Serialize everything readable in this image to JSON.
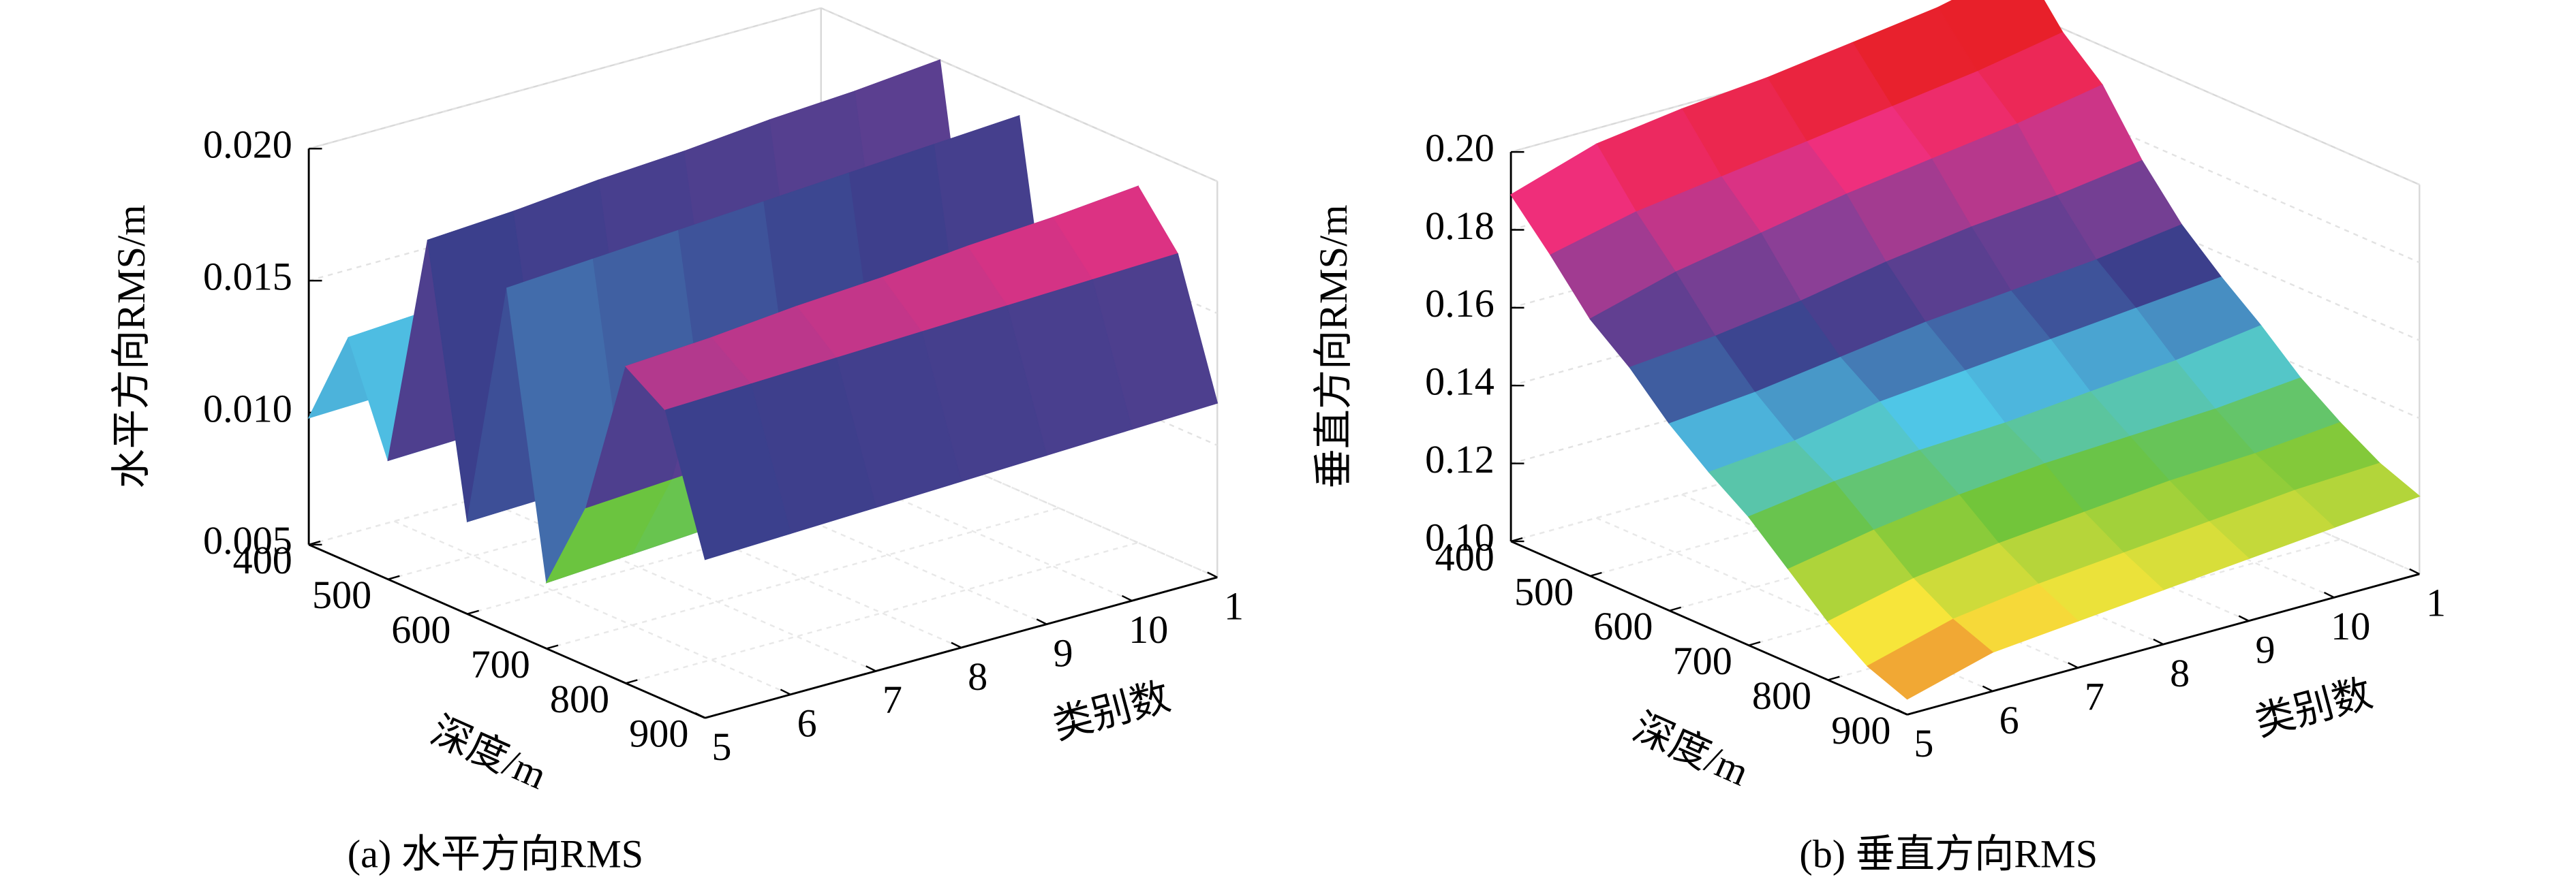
{
  "chart_data": [
    {
      "type": "surface",
      "caption": "(a) 水平方向RMS",
      "zlabel": "水平方向RMS/m",
      "ylabel": "深度/m",
      "xlabel": "类别数",
      "categories": [
        "5",
        "6",
        "7",
        "8",
        "9",
        "10",
        "1"
      ],
      "y": [
        400,
        450,
        500,
        550,
        600,
        650,
        700,
        750,
        800,
        850,
        900
      ],
      "values": [
        [
          0.0098,
          0.0099,
          0.01,
          0.0101,
          0.0102,
          0.0103,
          0.0104
        ],
        [
          0.0135,
          0.0137,
          0.014,
          0.0142,
          0.0145,
          0.0147,
          0.015
        ],
        [
          0.0095,
          0.0096,
          0.0097,
          0.0098,
          0.0099,
          0.01,
          0.0101
        ],
        [
          0.0185,
          0.0187,
          0.019,
          0.0192,
          0.0195,
          0.0197,
          0.02
        ],
        [
          0.0085,
          0.0086,
          0.0087,
          0.0088,
          0.0089,
          0.009,
          0.0091
        ],
        [
          0.018,
          0.0182,
          0.0184,
          0.0186,
          0.0188,
          0.019,
          0.0192
        ],
        [
          0.0075,
          0.0077,
          0.0079,
          0.0081,
          0.0083,
          0.0085,
          0.0087
        ],
        [
          0.011,
          0.0112,
          0.0114,
          0.0116,
          0.0118,
          0.012,
          0.0122
        ],
        [
          0.017,
          0.0172,
          0.0175,
          0.0177,
          0.018,
          0.0182,
          0.0185
        ],
        [
          0.016,
          0.0161,
          0.0162,
          0.0163,
          0.0164,
          0.0165,
          0.0166
        ],
        [
          0.011,
          0.0111,
          0.0112,
          0.0113,
          0.0114,
          0.0115,
          0.0116
        ]
      ],
      "zlim": [
        0.005,
        0.02
      ],
      "zticks": [
        0.005,
        {
          "value": 0.01,
          "label": "0.010"
        },
        0.015,
        {
          "value": 0.02,
          "label": "0.020"
        }
      ],
      "ylim": [
        400,
        900
      ],
      "yticks": [
        400,
        500,
        600,
        700,
        800,
        900
      ],
      "colormap": [
        "#e8202a",
        "#f7d630",
        "#6cc43a",
        "#4fc6e8",
        "#3b3f8c",
        "#8a3f96",
        "#ef2f7f",
        "#e8202a"
      ],
      "grid": true
    },
    {
      "type": "surface",
      "caption": "(b) 垂直方向RMS",
      "zlabel": "垂直方向RMS/m",
      "ylabel": "深度/m",
      "xlabel": "类别数",
      "categories": [
        "5",
        "6",
        "7",
        "8",
        "9",
        "10",
        "1"
      ],
      "y": [
        400,
        450,
        500,
        550,
        600,
        650,
        700,
        750,
        800,
        850,
        900
      ],
      "values": [
        [
          0.189,
          0.196,
          0.199,
          0.201,
          0.204,
          0.207,
          0.212
        ],
        [
          0.178,
          0.183,
          0.186,
          0.189,
          0.192,
          0.195,
          0.199
        ],
        [
          0.166,
          0.172,
          0.176,
          0.18,
          0.183,
          0.186,
          0.19
        ],
        [
          0.158,
          0.16,
          0.163,
          0.167,
          0.17,
          0.172,
          0.175
        ],
        [
          0.148,
          0.15,
          0.153,
          0.156,
          0.158,
          0.16,
          0.163
        ],
        [
          0.14,
          0.142,
          0.146,
          0.148,
          0.15,
          0.152,
          0.154
        ],
        [
          0.133,
          0.136,
          0.138,
          0.139,
          0.141,
          0.143,
          0.146
        ],
        [
          0.124,
          0.128,
          0.131,
          0.133,
          0.134,
          0.135,
          0.137
        ],
        [
          0.115,
          0.12,
          0.123,
          0.125,
          0.127,
          0.128,
          0.13
        ],
        [
          0.108,
          0.114,
          0.117,
          0.119,
          0.121,
          0.123,
          0.124
        ],
        [
          0.104,
          0.11,
          0.112,
          0.114,
          0.116,
          0.118,
          0.12
        ]
      ],
      "zlim": [
        0.1,
        0.2
      ],
      "zticks": [
        {
          "value": 0.1,
          "label": "0.10"
        },
        0.12,
        0.14,
        0.16,
        0.18,
        {
          "value": 0.2,
          "label": "0.20"
        }
      ],
      "ylim": [
        400,
        900
      ],
      "yticks": [
        400,
        500,
        600,
        700,
        800,
        900
      ],
      "colormap": [
        "#e8402a",
        "#f7e53a",
        "#6cc43a",
        "#4fc6e8",
        "#3b3f8c",
        "#8a3f96",
        "#ef2f7f",
        "#e8202a"
      ],
      "grid": true
    }
  ]
}
